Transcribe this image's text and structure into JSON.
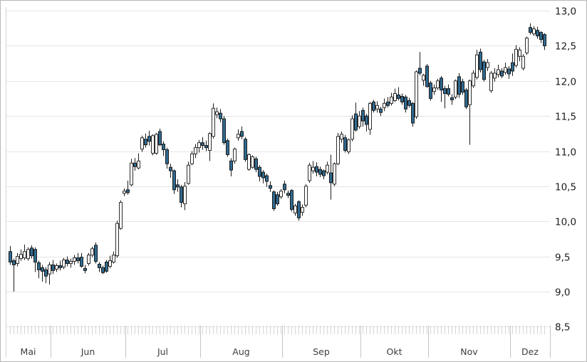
{
  "chart_data": {
    "type": "candlestick",
    "title": "",
    "y_axis": {
      "min": 8.5,
      "max": 13.0,
      "step": 0.5,
      "labels": [
        "13,0",
        "12,5",
        "12,0",
        "11,5",
        "11,0",
        "10,5",
        "10,0",
        "9,5",
        "9,0",
        "8,5"
      ],
      "side": "right",
      "grid": true
    },
    "x_axis": {
      "months": [
        {
          "label": "Mai",
          "days": 12
        },
        {
          "label": "Jun",
          "days": 21
        },
        {
          "label": "Jul",
          "days": 21
        },
        {
          "label": "Aug",
          "days": 23
        },
        {
          "label": "Sep",
          "days": 22
        },
        {
          "label": "Okt",
          "days": 19
        },
        {
          "label": "Nov",
          "days": 23
        },
        {
          "label": "Dez",
          "days": 10
        }
      ]
    },
    "colors": {
      "up_fill": "#ffffff",
      "up_border": "#2e2e2e",
      "down_fill": "#2f6a91",
      "down_border": "#1c1c1c",
      "wick": "#1c1c1c",
      "grid": "#e5e5e8",
      "axis_text": "#1c1c1c",
      "month_text": "#3d3d3d",
      "day_tick": "#d6d6d6",
      "separator": "#c4c4c4",
      "frame": "#d6d6d6"
    },
    "candles_format": [
      "open",
      "high",
      "low",
      "close"
    ],
    "candles": [
      [
        9.57,
        9.65,
        9.38,
        9.42
      ],
      [
        9.44,
        9.47,
        9.0,
        9.38
      ],
      [
        9.4,
        9.55,
        9.36,
        9.5
      ],
      [
        9.47,
        9.6,
        9.44,
        9.53
      ],
      [
        9.48,
        9.67,
        9.45,
        9.57
      ],
      [
        9.47,
        9.63,
        9.44,
        9.6
      ],
      [
        9.62,
        9.66,
        9.47,
        9.51
      ],
      [
        9.6,
        9.63,
        9.28,
        9.42
      ],
      [
        9.41,
        9.44,
        9.19,
        9.31
      ],
      [
        9.34,
        9.38,
        9.14,
        9.29
      ],
      [
        9.31,
        9.35,
        9.12,
        9.22
      ],
      [
        9.25,
        9.42,
        9.1,
        9.38
      ],
      [
        9.38,
        9.45,
        9.25,
        9.3
      ],
      [
        9.32,
        9.4,
        9.28,
        9.37
      ],
      [
        9.37,
        9.44,
        9.3,
        9.34
      ],
      [
        9.35,
        9.48,
        9.32,
        9.45
      ],
      [
        9.45,
        9.5,
        9.36,
        9.4
      ],
      [
        9.4,
        9.47,
        9.34,
        9.43
      ],
      [
        9.43,
        9.52,
        9.38,
        9.48
      ],
      [
        9.48,
        9.55,
        9.4,
        9.44
      ],
      [
        9.49,
        9.55,
        9.34,
        9.36
      ],
      [
        9.33,
        9.38,
        9.26,
        9.3
      ],
      [
        9.4,
        9.55,
        9.37,
        9.52
      ],
      [
        9.52,
        9.64,
        9.49,
        9.61
      ],
      [
        9.66,
        9.7,
        9.4,
        9.43
      ],
      [
        9.39,
        9.42,
        9.28,
        9.34
      ],
      [
        9.34,
        9.37,
        9.25,
        9.27
      ],
      [
        9.42,
        9.45,
        9.27,
        9.29
      ],
      [
        9.36,
        9.51,
        9.33,
        9.44
      ],
      [
        9.42,
        9.57,
        9.4,
        9.52
      ],
      [
        9.51,
        10.01,
        9.48,
        9.97
      ],
      [
        9.9,
        10.3,
        9.88,
        10.27
      ],
      [
        10.4,
        10.47,
        10.36,
        10.43
      ],
      [
        10.45,
        10.58,
        10.38,
        10.41
      ],
      [
        10.52,
        10.89,
        10.5,
        10.83
      ],
      [
        10.83,
        10.9,
        10.72,
        10.78
      ],
      [
        10.76,
        10.97,
        10.74,
        10.86
      ],
      [
        11.03,
        11.22,
        10.99,
        11.19
      ],
      [
        11.17,
        11.25,
        11.05,
        11.09
      ],
      [
        11.21,
        11.29,
        11.08,
        11.14
      ],
      [
        10.97,
        11.24,
        10.94,
        11.22
      ],
      [
        10.97,
        11.26,
        10.95,
        11.24
      ],
      [
        11.28,
        11.32,
        11.07,
        11.09
      ],
      [
        11.1,
        11.14,
        10.93,
        11.02
      ],
      [
        11.02,
        11.05,
        10.75,
        10.82
      ],
      [
        10.77,
        10.82,
        10.62,
        10.72
      ],
      [
        10.72,
        10.74,
        10.39,
        10.45
      ],
      [
        10.52,
        10.6,
        10.42,
        10.49
      ],
      [
        10.49,
        10.52,
        10.2,
        10.27
      ],
      [
        10.25,
        10.56,
        10.16,
        10.5
      ],
      [
        10.54,
        10.85,
        10.52,
        10.8
      ],
      [
        10.82,
        11.0,
        10.8,
        10.96
      ],
      [
        10.96,
        11.1,
        10.9,
        11.05
      ],
      [
        11.05,
        11.16,
        10.98,
        11.12
      ],
      [
        11.12,
        11.2,
        11.02,
        11.08
      ],
      [
        11.08,
        11.15,
        11.0,
        11.05
      ],
      [
        11.01,
        11.27,
        10.86,
        11.25
      ],
      [
        11.21,
        11.68,
        11.18,
        11.61
      ],
      [
        11.52,
        11.62,
        11.47,
        11.56
      ],
      [
        11.54,
        11.6,
        11.41,
        11.46
      ],
      [
        11.46,
        11.5,
        11.09,
        11.12
      ],
      [
        11.15,
        11.18,
        10.92,
        10.95
      ],
      [
        10.86,
        10.9,
        10.64,
        10.73
      ],
      [
        10.86,
        11.05,
        10.82,
        11.03
      ],
      [
        11.19,
        11.31,
        11.15,
        11.24
      ],
      [
        11.28,
        11.35,
        11.17,
        11.21
      ],
      [
        11.17,
        11.2,
        10.85,
        10.88
      ],
      [
        10.74,
        10.97,
        10.72,
        10.95
      ],
      [
        10.77,
        10.94,
        10.75,
        10.92
      ],
      [
        10.89,
        10.92,
        10.7,
        10.74
      ],
      [
        10.77,
        10.8,
        10.57,
        10.64
      ],
      [
        10.7,
        10.73,
        10.54,
        10.62
      ],
      [
        10.65,
        10.68,
        10.49,
        10.57
      ],
      [
        10.51,
        10.57,
        10.42,
        10.47
      ],
      [
        10.42,
        10.44,
        10.15,
        10.18
      ],
      [
        10.38,
        10.42,
        10.22,
        10.25
      ],
      [
        10.35,
        10.46,
        10.32,
        10.43
      ],
      [
        10.53,
        10.58,
        10.4,
        10.45
      ],
      [
        10.4,
        10.44,
        10.33,
        10.37
      ],
      [
        10.44,
        10.46,
        10.14,
        10.17
      ],
      [
        10.12,
        10.25,
        10.08,
        10.22
      ],
      [
        10.28,
        10.3,
        10.01,
        10.05
      ],
      [
        10.13,
        10.24,
        10.08,
        10.2
      ],
      [
        10.23,
        10.53,
        10.2,
        10.5
      ],
      [
        10.58,
        10.83,
        10.55,
        10.8
      ],
      [
        10.72,
        10.86,
        10.68,
        10.77
      ],
      [
        10.78,
        10.84,
        10.64,
        10.7
      ],
      [
        10.74,
        10.78,
        10.63,
        10.67
      ],
      [
        10.72,
        10.74,
        10.6,
        10.65
      ],
      [
        10.7,
        10.85,
        10.67,
        10.8
      ],
      [
        10.69,
        10.95,
        10.31,
        10.55
      ],
      [
        10.53,
        10.84,
        10.5,
        10.82
      ],
      [
        10.82,
        11.26,
        10.8,
        11.21
      ],
      [
        11.17,
        11.28,
        11.12,
        11.24
      ],
      [
        11.19,
        11.23,
        10.98,
        11.01
      ],
      [
        10.99,
        11.18,
        10.96,
        11.16
      ],
      [
        11.17,
        11.51,
        11.14,
        11.46
      ],
      [
        11.53,
        11.69,
        11.28,
        11.3
      ],
      [
        11.35,
        11.57,
        11.32,
        11.5
      ],
      [
        11.58,
        11.62,
        11.35,
        11.43
      ],
      [
        11.5,
        11.53,
        11.28,
        11.38
      ],
      [
        11.31,
        11.7,
        11.23,
        11.68
      ],
      [
        11.7,
        11.73,
        11.55,
        11.58
      ],
      [
        11.6,
        11.71,
        11.55,
        11.65
      ],
      [
        11.6,
        11.63,
        11.5,
        11.55
      ],
      [
        11.62,
        11.75,
        11.57,
        11.68
      ],
      [
        11.7,
        11.77,
        11.62,
        11.65
      ],
      [
        11.68,
        11.83,
        11.65,
        11.77
      ],
      [
        11.72,
        11.89,
        11.7,
        11.82
      ],
      [
        11.8,
        11.91,
        11.72,
        11.75
      ],
      [
        11.78,
        11.82,
        11.66,
        11.7
      ],
      [
        11.77,
        11.8,
        11.55,
        11.6
      ],
      [
        11.72,
        11.76,
        11.62,
        11.65
      ],
      [
        11.68,
        11.7,
        11.35,
        11.4
      ],
      [
        11.49,
        12.15,
        11.46,
        12.13
      ],
      [
        12.18,
        12.41,
        12.08,
        12.11
      ],
      [
        12.01,
        12.1,
        11.93,
        12.08
      ],
      [
        12.21,
        12.24,
        11.9,
        11.92
      ],
      [
        11.97,
        12.0,
        11.72,
        11.75
      ],
      [
        11.85,
        11.95,
        11.8,
        11.9
      ],
      [
        11.9,
        12.03,
        11.87,
        12.0
      ],
      [
        12.04,
        12.07,
        11.7,
        11.87
      ],
      [
        11.89,
        11.93,
        11.61,
        11.82
      ],
      [
        11.89,
        11.95,
        11.78,
        11.81
      ],
      [
        11.76,
        11.81,
        11.66,
        11.73
      ],
      [
        11.77,
        12.02,
        11.74,
        12.0
      ],
      [
        12.06,
        12.11,
        11.76,
        11.81
      ],
      [
        11.99,
        12.03,
        11.8,
        11.84
      ],
      [
        11.87,
        11.9,
        11.6,
        11.63
      ],
      [
        11.66,
        12.02,
        11.09,
        12.0
      ],
      [
        11.93,
        12.15,
        11.9,
        12.11
      ],
      [
        12.05,
        12.44,
        12.02,
        12.37
      ],
      [
        12.41,
        12.46,
        12.12,
        12.16
      ],
      [
        12.27,
        12.3,
        11.99,
        12.02
      ],
      [
        12.19,
        12.31,
        12.14,
        12.26
      ],
      [
        11.86,
        12.14,
        11.83,
        12.11
      ],
      [
        12.04,
        12.18,
        11.99,
        12.11
      ],
      [
        12.09,
        12.23,
        12.05,
        12.16
      ],
      [
        12.14,
        12.18,
        12.04,
        12.07
      ],
      [
        12.12,
        12.26,
        12.09,
        12.19
      ],
      [
        12.17,
        12.21,
        12.03,
        12.1
      ],
      [
        12.26,
        12.39,
        12.07,
        12.14
      ],
      [
        12.22,
        12.51,
        12.19,
        12.45
      ],
      [
        12.35,
        12.48,
        12.28,
        12.44
      ],
      [
        12.18,
        12.38,
        12.15,
        12.35
      ],
      [
        12.4,
        12.63,
        12.37,
        12.61
      ],
      [
        12.76,
        12.82,
        12.66,
        12.69
      ],
      [
        12.67,
        12.78,
        12.64,
        12.74
      ],
      [
        12.72,
        12.77,
        12.6,
        12.64
      ],
      [
        12.69,
        12.71,
        12.54,
        12.59
      ],
      [
        12.66,
        12.68,
        12.44,
        12.5
      ]
    ]
  }
}
